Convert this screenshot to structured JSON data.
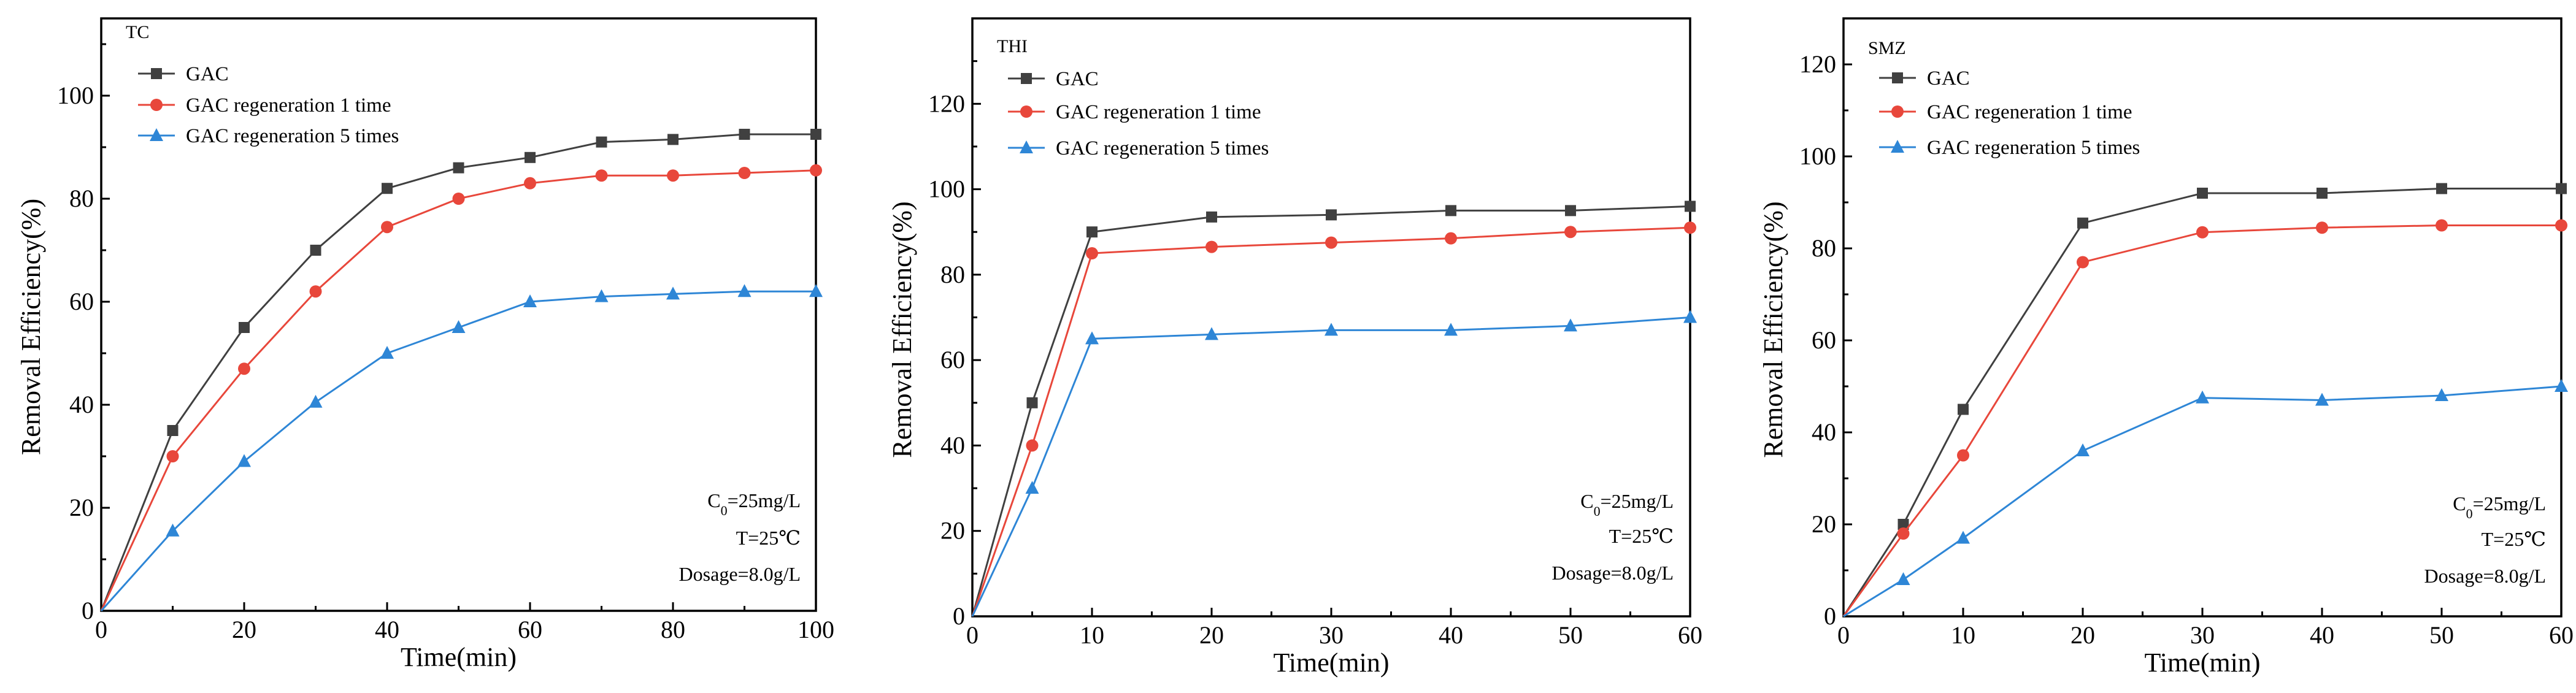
{
  "chart_data": [
    {
      "type": "line",
      "title": "TC",
      "xlabel": "Time(min)",
      "ylabel": "Removal Efficiency(%)",
      "xlim": [
        0,
        100
      ],
      "ylim": [
        0,
        115
      ],
      "xticks": [
        0,
        20,
        40,
        60,
        80,
        100
      ],
      "yticks": [
        0,
        20,
        40,
        60,
        80,
        100
      ],
      "x": [
        0,
        10,
        20,
        30,
        40,
        50,
        60,
        70,
        80,
        90,
        100
      ],
      "series": [
        {
          "name": "GAC",
          "marker": "square",
          "color": "#404040",
          "values": [
            0,
            35,
            55,
            70,
            82,
            86,
            88,
            91,
            91.5,
            92.5,
            92.5
          ]
        },
        {
          "name": "GAC regeneration 1 time",
          "marker": "circle",
          "color": "#e8473b",
          "values": [
            0,
            30,
            47,
            62,
            74.5,
            80,
            83,
            84.5,
            84.5,
            85,
            85.5
          ]
        },
        {
          "name": "GAC regeneration 5 times",
          "marker": "triangle",
          "color": "#2e86d6",
          "values": [
            0,
            15.5,
            29,
            40.5,
            50,
            55,
            60,
            61,
            61.5,
            62,
            62
          ]
        }
      ],
      "conditions": {
        "c0": "C",
        "c0_sub": "0",
        "c0_rest": "=25mg/L",
        "temp": "T=25℃",
        "dosage": "Dosage=8.0g/L"
      }
    },
    {
      "type": "line",
      "title": "THI",
      "xlabel": "Time(min)",
      "ylabel": "Removal Efficiency(%)",
      "xlim": [
        0,
        60
      ],
      "ylim": [
        0,
        140
      ],
      "xticks": [
        0,
        10,
        20,
        30,
        40,
        50,
        60
      ],
      "yticks": [
        0,
        20,
        40,
        60,
        80,
        100,
        120
      ],
      "x": [
        0,
        5,
        10,
        20,
        30,
        40,
        50,
        60
      ],
      "series": [
        {
          "name": "GAC",
          "marker": "square",
          "color": "#404040",
          "values": [
            0,
            50,
            90,
            93.5,
            94,
            95,
            95,
            96
          ]
        },
        {
          "name": "GAC regeneration 1 time",
          "marker": "circle",
          "color": "#e8473b",
          "values": [
            0,
            40,
            85,
            86.5,
            87.5,
            88.5,
            90,
            91
          ]
        },
        {
          "name": "GAC regeneration 5 times",
          "marker": "triangle",
          "color": "#2e86d6",
          "values": [
            0,
            30,
            65,
            66,
            67,
            67,
            68,
            70
          ]
        }
      ],
      "conditions": {
        "c0": "C",
        "c0_sub": "0",
        "c0_rest": "=25mg/L",
        "temp": "T=25℃",
        "dosage": "Dosage=8.0g/L"
      }
    },
    {
      "type": "line",
      "title": "SMZ",
      "xlabel": "Time(min)",
      "ylabel": "Removal Efficiency(%)",
      "xlim": [
        0,
        60
      ],
      "ylim": [
        0,
        130
      ],
      "xticks": [
        0,
        10,
        20,
        30,
        40,
        50,
        60
      ],
      "yticks": [
        0,
        20,
        40,
        60,
        80,
        100,
        120
      ],
      "x": [
        0,
        5,
        10,
        20,
        30,
        40,
        50,
        60
      ],
      "series": [
        {
          "name": "GAC",
          "marker": "square",
          "color": "#404040",
          "values": [
            0,
            20,
            45,
            85.5,
            92,
            92,
            93,
            93
          ]
        },
        {
          "name": "GAC regeneration 1 time",
          "marker": "circle",
          "color": "#e8473b",
          "values": [
            0,
            18,
            35,
            77,
            83.5,
            84.5,
            85,
            85
          ]
        },
        {
          "name": "GAC regeneration 5 times",
          "marker": "triangle",
          "color": "#2e86d6",
          "values": [
            0,
            8,
            17,
            36,
            47.5,
            47,
            48,
            50
          ]
        }
      ],
      "conditions": {
        "c0": "C",
        "c0_sub": "0",
        "c0_rest": "=25mg/L",
        "temp": "T=25℃",
        "dosage": "Dosage=8.0g/L"
      }
    }
  ]
}
